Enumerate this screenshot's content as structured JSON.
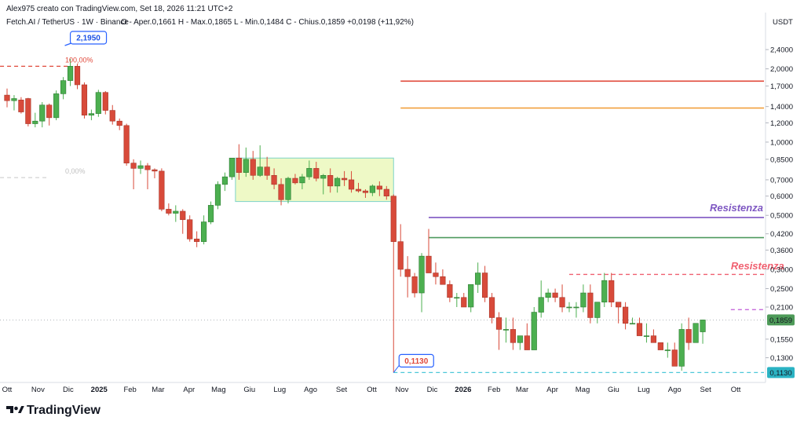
{
  "header": {
    "credit": "Alex975 creato con TradingView.com, Set 18, 2026 11:21 UTC+2",
    "symbol": "Fetch.AI / TetherUS · 1W · Binance",
    "ohlc": "O - Aper.0,1661  H - Max.0,1865  L - Min.0,1484  C - Chius.0,1859  +0,0198 (+11,92%)"
  },
  "brand": {
    "name": "TradingView"
  },
  "colors": {
    "up": "#4caf50",
    "down": "#d84a3a",
    "red_line": "#e0493b",
    "orange_line": "#f2a03d",
    "purple_line": "#7e57c2",
    "green_line": "#4e9a5e",
    "pink_dashed": "#f06070",
    "violet_dashed": "#c05ad8",
    "cyan_dashed": "#4dc8d8",
    "zone_fill": "#eef9c6",
    "zone_stroke": "#7dd3c8",
    "tag_blue": "#2962ff"
  },
  "chart_data": {
    "type": "candlestick",
    "interval": "1W",
    "y_scale": "log",
    "currency": "USDT",
    "ylim": [
      0.106,
      2.85
    ],
    "price_ticks": [
      "2,4000",
      "2,0000",
      "1,7000",
      "1,4000",
      "1,2000",
      "1,0000",
      "0,8500",
      "0,7000",
      "0,6000",
      "0,5000",
      "0,4200",
      "0,3600",
      "0,3000",
      "0,2500",
      "0,2100",
      "0,1550",
      "0,1300"
    ],
    "time_ticks": [
      {
        "label": "Ott",
        "week": 0
      },
      {
        "label": "Nov",
        "week": 4.4
      },
      {
        "label": "Dic",
        "week": 8.7
      },
      {
        "label": "2025",
        "week": 13.1,
        "bold": true
      },
      {
        "label": "Feb",
        "week": 17.5
      },
      {
        "label": "Mar",
        "week": 21.5
      },
      {
        "label": "Apr",
        "week": 25.9
      },
      {
        "label": "Mag",
        "week": 30.1
      },
      {
        "label": "Giu",
        "week": 34.5
      },
      {
        "label": "Lug",
        "week": 38.8
      },
      {
        "label": "Ago",
        "week": 43.2
      },
      {
        "label": "Set",
        "week": 47.6
      },
      {
        "label": "Ott",
        "week": 51.9
      },
      {
        "label": "Nov",
        "week": 56.2
      },
      {
        "label": "Dic",
        "week": 60.5
      },
      {
        "label": "2026",
        "week": 64.9,
        "bold": true
      },
      {
        "label": "Feb",
        "week": 69.3
      },
      {
        "label": "Mar",
        "week": 73.3
      },
      {
        "label": "Apr",
        "week": 77.6
      },
      {
        "label": "Mag",
        "week": 81.9
      },
      {
        "label": "Giu",
        "week": 86.3
      },
      {
        "label": "Lug",
        "week": 90.6
      },
      {
        "label": "Ago",
        "week": 95.0
      },
      {
        "label": "Set",
        "week": 99.4
      },
      {
        "label": "Ott",
        "week": 103.7
      }
    ],
    "candles": [
      [
        1.56,
        1.66,
        1.39,
        1.48
      ],
      [
        1.48,
        1.56,
        1.35,
        1.51
      ],
      [
        1.49,
        1.53,
        1.31,
        1.33
      ],
      [
        1.51,
        1.52,
        1.16,
        1.19
      ],
      [
        1.19,
        1.32,
        1.15,
        1.22
      ],
      [
        1.22,
        1.46,
        1.15,
        1.42
      ],
      [
        1.42,
        1.44,
        1.17,
        1.26
      ],
      [
        1.26,
        1.63,
        1.23,
        1.58
      ],
      [
        1.58,
        1.85,
        1.5,
        1.79
      ],
      [
        1.79,
        2.2,
        1.7,
        2.05
      ],
      [
        2.05,
        2.1,
        1.65,
        1.72
      ],
      [
        1.72,
        1.76,
        1.25,
        1.29
      ],
      [
        1.29,
        1.36,
        1.23,
        1.31
      ],
      [
        1.31,
        1.64,
        1.27,
        1.6
      ],
      [
        1.6,
        1.62,
        1.3,
        1.35
      ],
      [
        1.35,
        1.42,
        1.18,
        1.22
      ],
      [
        1.22,
        1.25,
        1.12,
        1.17
      ],
      [
        1.17,
        1.19,
        0.8,
        0.82
      ],
      [
        0.82,
        0.85,
        0.64,
        0.78
      ],
      [
        0.78,
        0.84,
        0.74,
        0.8
      ],
      [
        0.8,
        0.82,
        0.64,
        0.77
      ],
      [
        0.77,
        0.78,
        0.71,
        0.76
      ],
      [
        0.76,
        0.78,
        0.52,
        0.53
      ],
      [
        0.53,
        0.56,
        0.5,
        0.51
      ],
      [
        0.51,
        0.55,
        0.47,
        0.52
      ],
      [
        0.52,
        0.53,
        0.42,
        0.48
      ],
      [
        0.48,
        0.5,
        0.39,
        0.4
      ],
      [
        0.4,
        0.43,
        0.37,
        0.39
      ],
      [
        0.39,
        0.5,
        0.38,
        0.47
      ],
      [
        0.47,
        0.57,
        0.46,
        0.55
      ],
      [
        0.55,
        0.69,
        0.53,
        0.67
      ],
      [
        0.67,
        0.75,
        0.63,
        0.72
      ],
      [
        0.72,
        0.86,
        0.7,
        0.86
      ],
      [
        0.86,
        0.98,
        0.7,
        0.75
      ],
      [
        0.75,
        0.95,
        0.72,
        0.85
      ],
      [
        0.85,
        0.92,
        0.7,
        0.73
      ],
      [
        0.73,
        0.97,
        0.72,
        0.79
      ],
      [
        0.79,
        0.87,
        0.7,
        0.73
      ],
      [
        0.73,
        0.78,
        0.64,
        0.67
      ],
      [
        0.67,
        0.71,
        0.55,
        0.58
      ],
      [
        0.58,
        0.72,
        0.56,
        0.71
      ],
      [
        0.71,
        0.74,
        0.67,
        0.68
      ],
      [
        0.68,
        0.74,
        0.64,
        0.72
      ],
      [
        0.72,
        0.84,
        0.7,
        0.78
      ],
      [
        0.78,
        0.83,
        0.69,
        0.71
      ],
      [
        0.71,
        0.74,
        0.61,
        0.73
      ],
      [
        0.73,
        0.78,
        0.62,
        0.66
      ],
      [
        0.66,
        0.72,
        0.62,
        0.71
      ],
      [
        0.71,
        0.76,
        0.66,
        0.7
      ],
      [
        0.7,
        0.76,
        0.62,
        0.64
      ],
      [
        0.64,
        0.68,
        0.62,
        0.63
      ],
      [
        0.63,
        0.64,
        0.59,
        0.62
      ],
      [
        0.62,
        0.67,
        0.6,
        0.66
      ],
      [
        0.66,
        0.69,
        0.6,
        0.64
      ],
      [
        0.64,
        0.66,
        0.58,
        0.6
      ],
      [
        0.6,
        0.61,
        0.113,
        0.39
      ],
      [
        0.39,
        0.46,
        0.28,
        0.3
      ],
      [
        0.3,
        0.34,
        0.23,
        0.28
      ],
      [
        0.28,
        0.29,
        0.23,
        0.24
      ],
      [
        0.24,
        0.35,
        0.2,
        0.34
      ],
      [
        0.34,
        0.44,
        0.29,
        0.29
      ],
      [
        0.29,
        0.32,
        0.26,
        0.28
      ],
      [
        0.28,
        0.3,
        0.26,
        0.26
      ],
      [
        0.26,
        0.27,
        0.22,
        0.23
      ],
      [
        0.23,
        0.24,
        0.21,
        0.23
      ],
      [
        0.23,
        0.24,
        0.21,
        0.21
      ],
      [
        0.21,
        0.26,
        0.2,
        0.26
      ],
      [
        0.26,
        0.32,
        0.24,
        0.29
      ],
      [
        0.29,
        0.31,
        0.22,
        0.23
      ],
      [
        0.23,
        0.24,
        0.18,
        0.19
      ],
      [
        0.19,
        0.2,
        0.14,
        0.17
      ],
      [
        0.17,
        0.19,
        0.15,
        0.17
      ],
      [
        0.17,
        0.19,
        0.14,
        0.15
      ],
      [
        0.15,
        0.16,
        0.14,
        0.16
      ],
      [
        0.16,
        0.18,
        0.14,
        0.14
      ],
      [
        0.14,
        0.21,
        0.14,
        0.2
      ],
      [
        0.2,
        0.27,
        0.19,
        0.23
      ],
      [
        0.23,
        0.25,
        0.22,
        0.24
      ],
      [
        0.24,
        0.25,
        0.22,
        0.23
      ],
      [
        0.23,
        0.26,
        0.2,
        0.21
      ],
      [
        0.21,
        0.22,
        0.2,
        0.21
      ],
      [
        0.21,
        0.22,
        0.19,
        0.21
      ],
      [
        0.21,
        0.26,
        0.2,
        0.24
      ],
      [
        0.24,
        0.26,
        0.18,
        0.19
      ],
      [
        0.19,
        0.22,
        0.18,
        0.22
      ],
      [
        0.22,
        0.29,
        0.21,
        0.27
      ],
      [
        0.27,
        0.29,
        0.21,
        0.22
      ],
      [
        0.22,
        0.22,
        0.18,
        0.21
      ],
      [
        0.21,
        0.22,
        0.17,
        0.18
      ],
      [
        0.18,
        0.19,
        0.18,
        0.18
      ],
      [
        0.18,
        0.19,
        0.16,
        0.16
      ],
      [
        0.16,
        0.18,
        0.15,
        0.16
      ],
      [
        0.16,
        0.17,
        0.15,
        0.15
      ],
      [
        0.15,
        0.15,
        0.14,
        0.14
      ],
      [
        0.14,
        0.15,
        0.13,
        0.14
      ],
      [
        0.14,
        0.15,
        0.12,
        0.12
      ],
      [
        0.12,
        0.18,
        0.115,
        0.17
      ],
      [
        0.17,
        0.19,
        0.14,
        0.15
      ],
      [
        0.15,
        0.18,
        0.15,
        0.18
      ],
      [
        0.1661,
        0.1865,
        0.1484,
        0.1859
      ]
    ],
    "current_price": "0,1859",
    "current_price_value": 0.1859,
    "low_price": "0,1130",
    "low_price_value": 0.113,
    "annotations": {
      "high_tag": {
        "text": "2,1950",
        "price": 2.195,
        "week": 9
      },
      "low_tag": {
        "text": "0,1130",
        "price": 0.113,
        "week": 55
      },
      "fib_100": {
        "text": "100,00%",
        "price": 2.05,
        "week_from": -1,
        "week_to": 9
      },
      "fib_0": {
        "text": "0,00%",
        "price": 0.715,
        "week_from": -1,
        "week_to": 6
      },
      "range_box": {
        "week_from": 32.5,
        "week_to": 55,
        "price_top": 0.86,
        "price_bottom": 0.57
      },
      "levels": [
        {
          "name": "red",
          "price": 1.78,
          "week_from": 56,
          "week_to": 117,
          "color": "#e0493b",
          "dashed": false
        },
        {
          "name": "orange",
          "price": 1.38,
          "week_from": 56,
          "week_to": 117,
          "color": "#f2a03d",
          "dashed": false
        },
        {
          "name": "purple",
          "price": 0.49,
          "week_from": 60,
          "week_to": 117,
          "color": "#7e57c2",
          "dashed": false
        },
        {
          "name": "green",
          "price": 0.405,
          "week_from": 60,
          "week_to": 117,
          "color": "#4e9a5e",
          "dashed": false
        },
        {
          "name": "pink",
          "price": 0.286,
          "week_from": 80,
          "week_to": 117,
          "color": "#f06070",
          "dashed": true
        },
        {
          "name": "violet",
          "price": 0.205,
          "week_from": 103,
          "week_to": 117,
          "color": "#c05ad8",
          "dashed": true
        },
        {
          "name": "cyan",
          "price": 0.113,
          "week_from": 55,
          "week_to": 117,
          "color": "#4dc8d8",
          "dashed": true
        }
      ],
      "resistance_labels": [
        {
          "text": "Resistenza",
          "price": 0.52,
          "week": 100,
          "color": "#7e57c2"
        },
        {
          "text": "Resistenza",
          "price": 0.3,
          "week": 103,
          "color": "#f06070"
        }
      ]
    }
  }
}
